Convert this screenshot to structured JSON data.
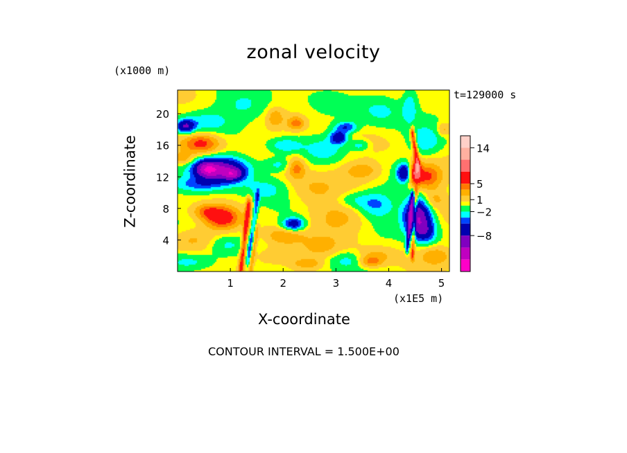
{
  "chart_data": {
    "type": "heatmap",
    "title": "zonal velocity",
    "xlabel": "X-coordinate",
    "ylabel": "Z-coordinate",
    "x_unit_label": "(x1E5 m)",
    "y_unit_label": "(x1000 m)",
    "time_label": "t=129000 s",
    "contour_interval_label": "CONTOUR INTERVAL = 1.500E+00",
    "xlim": [
      0,
      5.15
    ],
    "ylim": [
      0,
      23
    ],
    "x_ticks": [
      1,
      2,
      3,
      4,
      5
    ],
    "y_ticks": [
      4,
      8,
      12,
      16,
      20
    ],
    "colorbar": {
      "ticks": [
        {
          "value": 14,
          "label": "14"
        },
        {
          "value": 5,
          "label": "5"
        },
        {
          "value": 1,
          "label": "1"
        },
        {
          "value": -2,
          "label": "−2"
        },
        {
          "value": -8,
          "label": "−8"
        }
      ],
      "levels": [
        {
          "min": 14,
          "color": "#ffd0c8"
        },
        {
          "min": 11,
          "color": "#ffb0a0"
        },
        {
          "min": 8,
          "color": "#ff7070"
        },
        {
          "min": 5,
          "color": "#ff1010"
        },
        {
          "min": 3.5,
          "color": "#ff7800"
        },
        {
          "min": 2,
          "color": "#ffb000"
        },
        {
          "min": 0.5,
          "color": "#ffcc33"
        },
        {
          "min": -0.5,
          "color": "#ffff00"
        },
        {
          "min": -2,
          "color": "#00ff55"
        },
        {
          "min": -3.5,
          "color": "#00ffff"
        },
        {
          "min": -5,
          "color": "#0044ff"
        },
        {
          "min": -8,
          "color": "#0000b0"
        },
        {
          "min": -11,
          "color": "#8000c0"
        },
        {
          "min": -14,
          "color": "#c000c0"
        },
        {
          "min": -99,
          "color": "#ff00c8"
        }
      ]
    },
    "features": [
      {
        "x": 0.15,
        "z": 18.4,
        "sx": 0.12,
        "sz": 0.6,
        "a": -8
      },
      {
        "x": 0.55,
        "z": 19.0,
        "sx": 0.25,
        "sz": 0.8,
        "a": -2.5
      },
      {
        "x": 0.45,
        "z": 16.2,
        "sx": 0.25,
        "sz": 0.9,
        "a": 6
      },
      {
        "x": 0.1,
        "z": 14.3,
        "sx": 0.15,
        "sz": 0.6,
        "a": 3
      },
      {
        "x": 0.85,
        "z": 12.9,
        "sx": 0.35,
        "sz": 1.1,
        "a": -11
      },
      {
        "x": 0.55,
        "z": 13.0,
        "sx": 0.15,
        "sz": 0.7,
        "a": -7
      },
      {
        "x": 1.05,
        "z": 12.3,
        "sx": 0.12,
        "sz": 0.5,
        "a": -6
      },
      {
        "x": 0.4,
        "z": 11.0,
        "sx": 0.35,
        "sz": 0.6,
        "a": -3
      },
      {
        "x": 0.85,
        "z": 6.8,
        "sx": 0.22,
        "sz": 1.0,
        "a": 6
      },
      {
        "x": 0.55,
        "z": 7.6,
        "sx": 0.18,
        "sz": 0.7,
        "a": 3.5
      },
      {
        "x": 0.3,
        "z": 4.0,
        "sx": 0.35,
        "sz": 1.0,
        "a": 2.5
      },
      {
        "x": 0.9,
        "z": 3.4,
        "sx": 0.25,
        "sz": 0.9,
        "a": -2.5
      },
      {
        "x": 0.25,
        "z": 1.2,
        "sx": 0.35,
        "sz": 0.8,
        "a": -3
      },
      {
        "x": 1.3,
        "z": 21.0,
        "sx": 0.35,
        "sz": 1.4,
        "a": -2.5
      },
      {
        "x": 1.85,
        "z": 19.5,
        "sx": 0.1,
        "sz": 0.8,
        "a": 3
      },
      {
        "x": 2.25,
        "z": 18.8,
        "sx": 0.12,
        "sz": 0.6,
        "a": 4
      },
      {
        "x": 2.05,
        "z": 16.0,
        "sx": 0.2,
        "sz": 0.6,
        "a": -3
      },
      {
        "x": 2.25,
        "z": 13.2,
        "sx": 0.12,
        "sz": 0.9,
        "a": 4.5
      },
      {
        "x": 1.9,
        "z": 13.5,
        "sx": 0.2,
        "sz": 0.6,
        "a": -2.5
      },
      {
        "x": 1.65,
        "z": 10.5,
        "sx": 0.3,
        "sz": 1.0,
        "a": -2.5
      },
      {
        "x": 2.2,
        "z": 6.0,
        "sx": 0.15,
        "sz": 0.6,
        "a": -7
      },
      {
        "x": 2.0,
        "z": 4.5,
        "sx": 0.25,
        "sz": 0.8,
        "a": 3.5
      },
      {
        "x": 1.8,
        "z": 2.0,
        "sx": 0.3,
        "sz": 0.9,
        "a": 2
      },
      {
        "x": 2.45,
        "z": 1.0,
        "sx": 0.2,
        "sz": 0.5,
        "a": 3
      },
      {
        "x": 2.8,
        "z": 15.5,
        "sx": 0.25,
        "sz": 1.0,
        "a": -2.5
      },
      {
        "x": 3.05,
        "z": 17.0,
        "sx": 0.12,
        "sz": 0.6,
        "a": -7
      },
      {
        "x": 3.2,
        "z": 18.3,
        "sx": 0.15,
        "sz": 0.5,
        "a": -5
      },
      {
        "x": 3.45,
        "z": 16.0,
        "sx": 0.12,
        "sz": 0.5,
        "a": -3
      },
      {
        "x": 3.5,
        "z": 12.8,
        "sx": 0.25,
        "sz": 0.8,
        "a": 3
      },
      {
        "x": 2.55,
        "z": 10.5,
        "sx": 0.35,
        "sz": 1.5,
        "a": 2
      },
      {
        "x": 3.3,
        "z": 9.0,
        "sx": 0.25,
        "sz": 0.8,
        "a": -2.5
      },
      {
        "x": 3.75,
        "z": 8.5,
        "sx": 0.25,
        "sz": 1.2,
        "a": -4
      },
      {
        "x": 3.1,
        "z": 7.0,
        "sx": 0.4,
        "sz": 1.5,
        "a": 2.5
      },
      {
        "x": 2.7,
        "z": 3.0,
        "sx": 0.3,
        "sz": 1.0,
        "a": 2
      },
      {
        "x": 3.2,
        "z": 1.5,
        "sx": 0.25,
        "sz": 0.8,
        "a": -2.5
      },
      {
        "x": 3.75,
        "z": 2.0,
        "sx": 0.25,
        "sz": 0.8,
        "a": 2.5
      },
      {
        "x": 3.65,
        "z": 1.2,
        "sx": 0.15,
        "sz": 0.5,
        "a": 3.5
      },
      {
        "x": 3.85,
        "z": 20.5,
        "sx": 0.3,
        "sz": 1.5,
        "a": -2.5
      },
      {
        "x": 4.4,
        "z": 21.0,
        "sx": 0.1,
        "sz": 1.5,
        "a": -3
      },
      {
        "x": 4.7,
        "z": 16.5,
        "sx": 0.2,
        "sz": 1.2,
        "a": -3
      },
      {
        "x": 4.72,
        "z": 12.0,
        "sx": 0.2,
        "sz": 1.2,
        "a": 6
      },
      {
        "x": 4.5,
        "z": 12.5,
        "sx": 0.08,
        "sz": 1.0,
        "a": 8
      },
      {
        "x": 4.3,
        "z": 12.5,
        "sx": 0.1,
        "sz": 0.8,
        "a": -8
      },
      {
        "x": 4.55,
        "z": 7.0,
        "sx": 0.18,
        "sz": 1.6,
        "a": -11
      },
      {
        "x": 4.7,
        "z": 5.0,
        "sx": 0.15,
        "sz": 1.0,
        "a": -5
      },
      {
        "x": 4.85,
        "z": 9.0,
        "sx": 0.15,
        "sz": 0.8,
        "a": 2.5
      },
      {
        "x": 4.9,
        "z": 2.0,
        "sx": 0.2,
        "sz": 0.8,
        "a": 3
      },
      {
        "x": 5.05,
        "z": 18.0,
        "sx": 0.1,
        "sz": 0.6,
        "a": 3
      }
    ],
    "streaks": [
      {
        "x0": 1.2,
        "z0": 0.3,
        "x1": 1.35,
        "z1": 8.5,
        "w": 0.035,
        "a": 6
      },
      {
        "x0": 1.34,
        "z0": 1.5,
        "x1": 1.52,
        "z1": 9.5,
        "w": 0.03,
        "a": -4
      },
      {
        "x0": 1.38,
        "z0": 0.2,
        "x1": 1.5,
        "z1": 5.0,
        "w": 0.03,
        "a": 3
      },
      {
        "x0": 4.55,
        "z0": 13.5,
        "x1": 4.45,
        "z1": 17.5,
        "w": 0.03,
        "a": 7
      },
      {
        "x0": 4.35,
        "z0": 3.0,
        "x1": 4.45,
        "z1": 9.5,
        "w": 0.025,
        "a": -6
      },
      {
        "x0": 4.45,
        "z0": 2.0,
        "x1": 4.52,
        "z1": 10.0,
        "w": 0.025,
        "a": 5
      }
    ]
  }
}
